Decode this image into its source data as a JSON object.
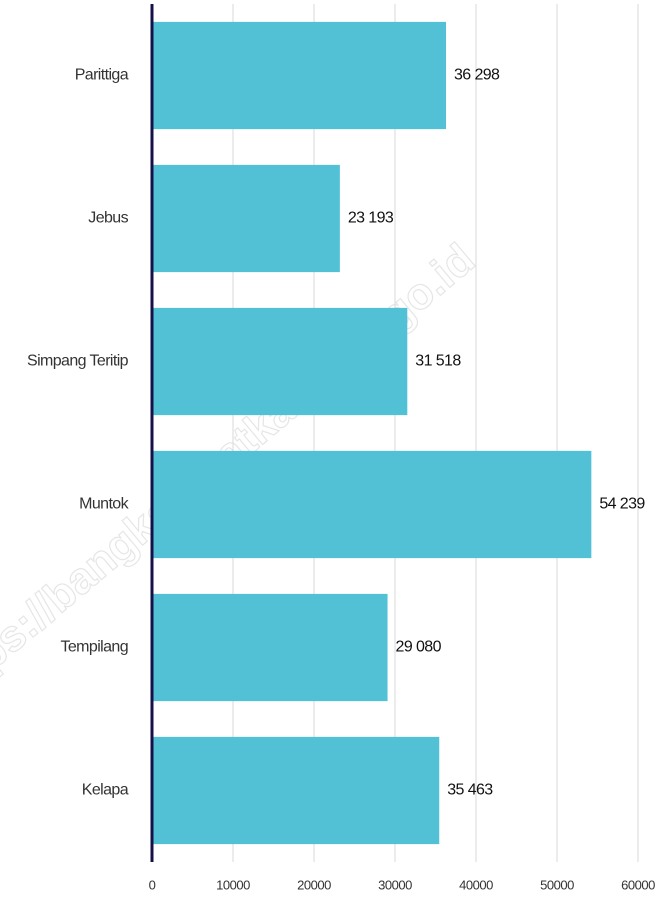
{
  "chart_data": {
    "type": "bar",
    "orientation": "horizontal",
    "categories": [
      "Parittiga",
      "Jebus",
      "Simpang Teritip",
      "Muntok",
      "Tempilang",
      "Kelapa"
    ],
    "values": [
      36298,
      23193,
      31518,
      54239,
      29080,
      35463
    ],
    "value_labels": [
      "36 298",
      "23 193",
      "31 518",
      "54 239",
      "29 080",
      "35 463"
    ],
    "color": "#52c1d6",
    "xlim": [
      0,
      60000
    ],
    "xticks": [
      0,
      10000,
      20000,
      30000,
      40000,
      50000,
      60000
    ],
    "grid": true,
    "watermark": "https://bangkabaratkab.bps.go.id"
  }
}
